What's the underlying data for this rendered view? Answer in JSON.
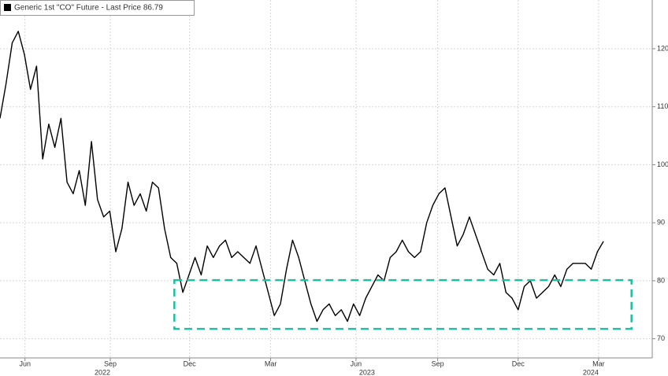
{
  "chart_data": {
    "type": "line",
    "series": [
      {
        "name": "Generic 1st \"CO\" Future - Last Price 86.79",
        "color": "#000000",
        "values": [
          108,
          114,
          121,
          123,
          119,
          113,
          117,
          101,
          107,
          103,
          108,
          97,
          95,
          99,
          93,
          104,
          94,
          91,
          92,
          85,
          89,
          97,
          93,
          95,
          92,
          97,
          96,
          89,
          84,
          83,
          78,
          81,
          84,
          81,
          86,
          84,
          86,
          87,
          84,
          85,
          84,
          83,
          86,
          82,
          78,
          74,
          76,
          82,
          87,
          84,
          80,
          76,
          73,
          75,
          76,
          74,
          75,
          73,
          76,
          74,
          77,
          79,
          81,
          80,
          84,
          85,
          87,
          85,
          84,
          85,
          90,
          93,
          95,
          96,
          91,
          86,
          88,
          91,
          88,
          85,
          82,
          81,
          83,
          78,
          77,
          75,
          79,
          80,
          77,
          78,
          79,
          81,
          79,
          82,
          83,
          83,
          83,
          82,
          85,
          86.79
        ]
      }
    ],
    "xlim": [
      0,
      107
    ],
    "xticks": [
      {
        "value": 4.1,
        "label": "Jun"
      },
      {
        "value": 18.1,
        "label": "Sep"
      },
      {
        "value": 31.1,
        "label": "Dec"
      },
      {
        "value": 44.4,
        "label": "Mar"
      },
      {
        "value": 58.4,
        "label": "Jun"
      },
      {
        "value": 71.8,
        "label": "Sep"
      },
      {
        "value": 85,
        "label": "Dec"
      },
      {
        "value": 98.2,
        "label": "Mar"
      }
    ],
    "year_ticks": [
      {
        "value": 16.8,
        "label": "2022"
      },
      {
        "value": 60.2,
        "label": "2023"
      },
      {
        "value": 96.9,
        "label": "2024"
      }
    ],
    "ylim": [
      66.7,
      128.4
    ],
    "yticks": [
      70,
      80,
      90,
      100,
      110,
      120
    ],
    "grid": true,
    "highlight_box": {
      "xlim": [
        28.6,
        103.6
      ],
      "ylim": [
        71.7,
        80.1
      ],
      "color": "#1fbf9f"
    }
  }
}
